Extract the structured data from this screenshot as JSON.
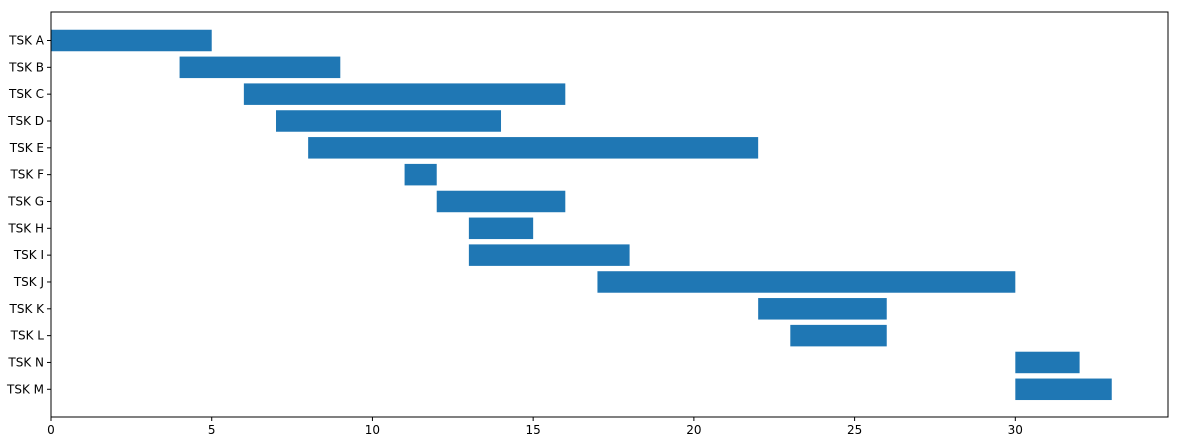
{
  "chart_data": {
    "type": "bar",
    "orientation": "horizontal",
    "subtype": "gantt",
    "title": "",
    "xlabel": "",
    "ylabel": "",
    "xlim": [
      0,
      34.75
    ],
    "x_ticks": [
      0,
      5,
      10,
      15,
      20,
      25,
      30
    ],
    "grid": false,
    "bar_color": "#1f77b4",
    "tasks": [
      {
        "label": "TSK A",
        "start": 0,
        "end": 5
      },
      {
        "label": "TSK B",
        "start": 4,
        "end": 9
      },
      {
        "label": "TSK C",
        "start": 6,
        "end": 16
      },
      {
        "label": "TSK D",
        "start": 7,
        "end": 14
      },
      {
        "label": "TSK E",
        "start": 8,
        "end": 22
      },
      {
        "label": "TSK F",
        "start": 11,
        "end": 12
      },
      {
        "label": "TSK G",
        "start": 12,
        "end": 16
      },
      {
        "label": "TSK H",
        "start": 13,
        "end": 15
      },
      {
        "label": "TSK I",
        "start": 13,
        "end": 18
      },
      {
        "label": "TSK J",
        "start": 17,
        "end": 30
      },
      {
        "label": "TSK K",
        "start": 22,
        "end": 26
      },
      {
        "label": "TSK L",
        "start": 23,
        "end": 26
      },
      {
        "label": "TSK N",
        "start": 30,
        "end": 32
      },
      {
        "label": "TSK M",
        "start": 30,
        "end": 33
      }
    ]
  }
}
